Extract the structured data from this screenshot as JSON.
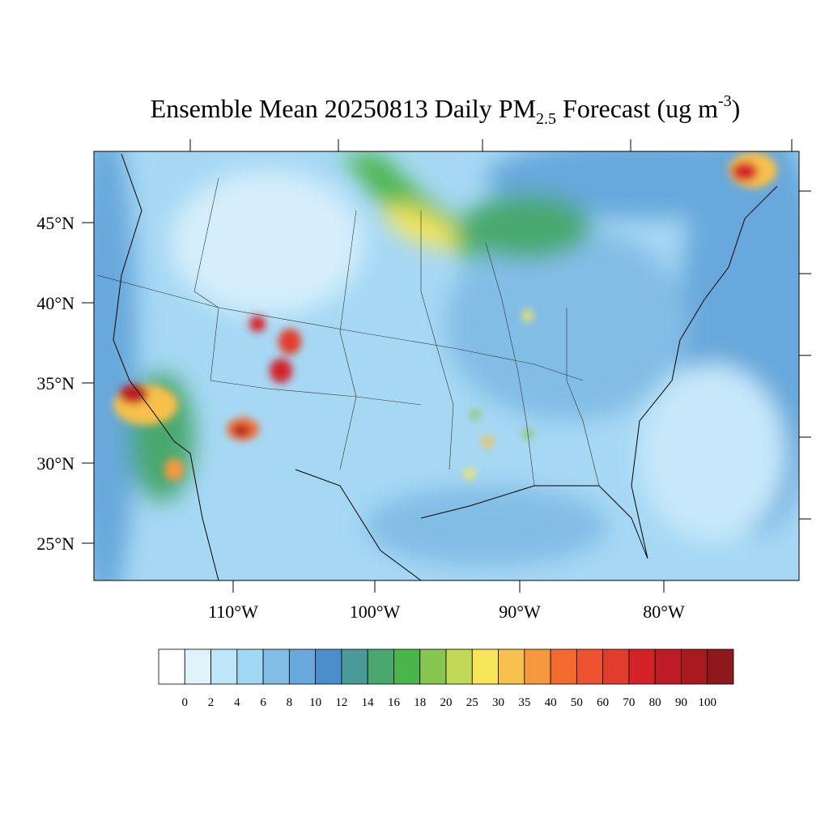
{
  "title": {
    "main": "Ensemble Mean 20250813 Daily PM",
    "sub": "2.5",
    "mid": " Forecast (ug m",
    "sup": "-3",
    "end": ")"
  },
  "map": {
    "lat_labels": [
      "45°N",
      "40°N",
      "35°N",
      "30°N",
      "25°N"
    ],
    "lon_labels": [
      "110°W",
      "100°W",
      "90°W",
      "80°W"
    ]
  },
  "colorbar": {
    "colors": [
      "#ffffff",
      "#e0f3fb",
      "#bfe6f8",
      "#a0d8f4",
      "#82bde6",
      "#68a8dc",
      "#4a8ecc",
      "#4a9a9a",
      "#4aa86e",
      "#4ab54a",
      "#87c650",
      "#c2d957",
      "#f8e65a",
      "#f8c04c",
      "#f6983e",
      "#f26c30",
      "#ee5230",
      "#e23c2c",
      "#d42229",
      "#be1b24",
      "#a81a20",
      "#8e181b"
    ],
    "labels": [
      0,
      2,
      4,
      6,
      8,
      10,
      12,
      14,
      16,
      18,
      20,
      25,
      30,
      35,
      40,
      50,
      60,
      70,
      80,
      90,
      100
    ]
  }
}
